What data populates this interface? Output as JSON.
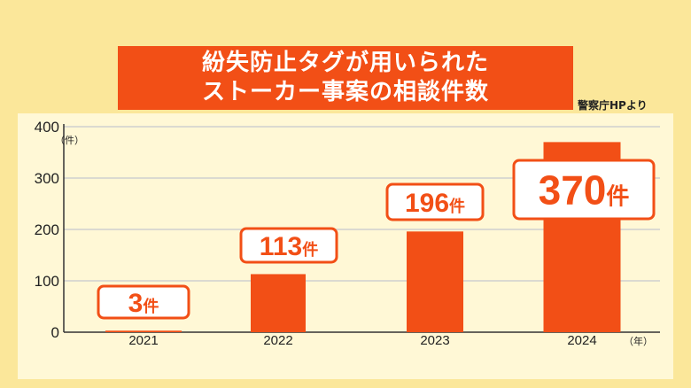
{
  "title_lines": [
    "紛失防止タグが用いられた",
    "ストーカー事案の相談件数"
  ],
  "source": "警察庁HPより",
  "colors": {
    "background": "#fbe79a",
    "panel": "#fff8d6",
    "accent": "#f24f16",
    "grid": "#cfcfcf",
    "text": "#222222"
  },
  "chart_data": {
    "type": "bar",
    "title": "紛失防止タグが用いられた ストーカー事案の相談件数",
    "categories": [
      "2021",
      "2022",
      "2023",
      "2024"
    ],
    "values": [
      3,
      113,
      196,
      370
    ],
    "data_labels": [
      {
        "num": "3",
        "unit": "件"
      },
      {
        "num": "113",
        "unit": "件"
      },
      {
        "num": "196",
        "unit": "件"
      },
      {
        "num": "370",
        "unit": "件"
      }
    ],
    "y_ticks": [
      "0",
      "100",
      "200",
      "300",
      "400"
    ],
    "y_tick_values": [
      0,
      100,
      200,
      300,
      400
    ],
    "y_unit": "（件）",
    "x_unit": "（年）",
    "ylim": [
      0,
      400
    ],
    "grid": true
  }
}
